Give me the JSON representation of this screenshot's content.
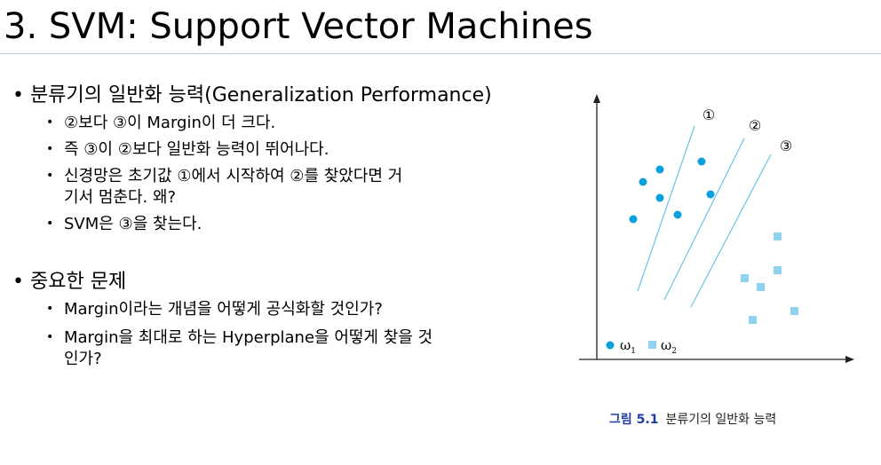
{
  "slide": {
    "title": "3. SVM: Support Vector Machines",
    "sections": [
      {
        "heading": "분류기의 일반화 능력(Generalization Performance)",
        "bullets": [
          {
            "lines": [
              "②보다 ③이 Margin이 더 크다."
            ]
          },
          {
            "lines": [
              "즉 ③이 ②보다 일반화 능력이 뛰어나다."
            ]
          },
          {
            "lines": [
              "신경망은 초기값 ①에서 시작하여 ②를 찾았다면 거",
              "기서 멈춘다. 왜?"
            ]
          },
          {
            "lines": [
              "SVM은 ③을 찾는다."
            ]
          }
        ]
      },
      {
        "heading": "중요한 문제",
        "bullets": [
          {
            "lines": [
              "Margin이라는 개념을 어떻게 공식화할 것인가?"
            ]
          },
          {
            "lines": [
              "Margin을 최대로 하는 Hyperplane을 어떻게 찾을 것",
              "인가?"
            ]
          }
        ]
      }
    ]
  },
  "figure": {
    "line_labels": [
      "①",
      "②",
      "③"
    ],
    "legend": [
      {
        "symbol": "circle",
        "label": "ω",
        "subscript": "1"
      },
      {
        "symbol": "square",
        "label": "ω",
        "subscript": "2"
      }
    ],
    "caption_label": "그림 5.1",
    "caption_text": "분류기의 일반화 능력",
    "colors": {
      "class1": "#0aa0dc",
      "class2": "#8fd3f0",
      "hyperplane": "#6cc3ea",
      "axis": "#222222",
      "caption_label": "#1f3e9e"
    }
  }
}
